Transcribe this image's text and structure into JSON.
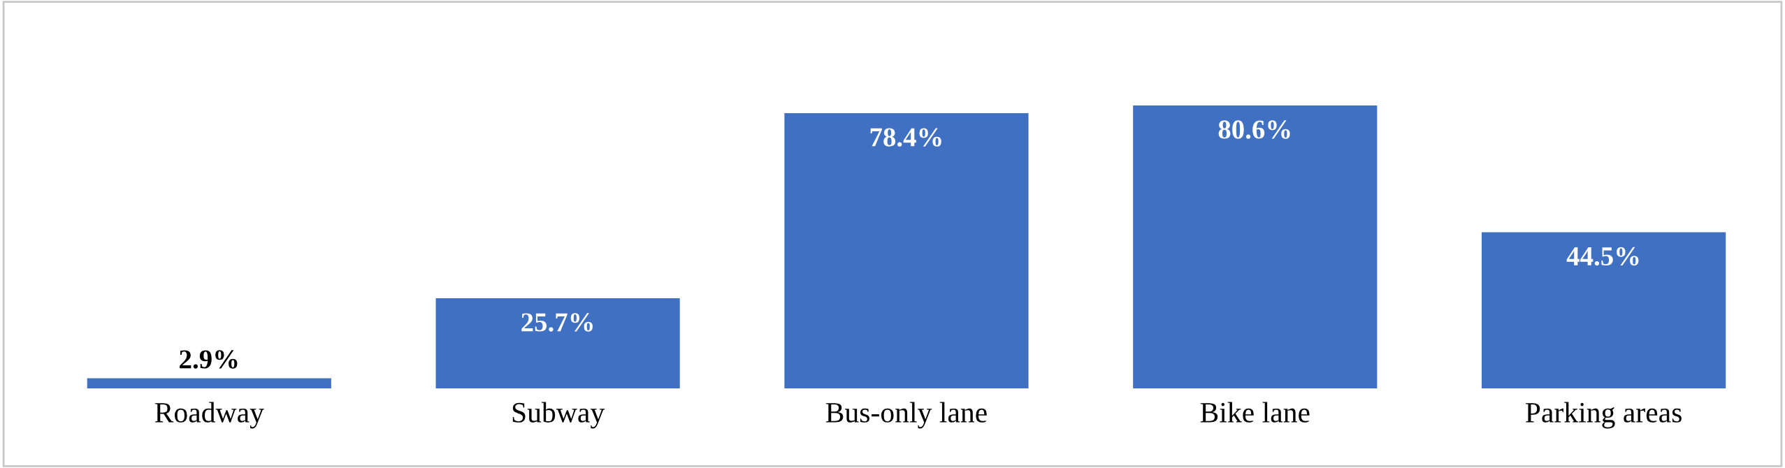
{
  "chart_data": {
    "type": "bar",
    "categories": [
      "Roadway",
      "Subway",
      "Bus-only lane",
      "Bike lane",
      "Parking areas"
    ],
    "values": [
      2.9,
      25.7,
      78.4,
      80.6,
      44.5
    ],
    "value_labels": [
      "2.9%",
      "25.7%",
      "78.4%",
      "80.6%",
      "44.5%"
    ],
    "color": "#4070c2",
    "grid": false,
    "legend": false
  }
}
